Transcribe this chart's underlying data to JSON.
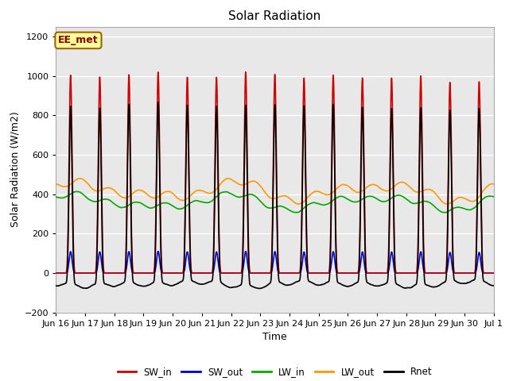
{
  "title": "Solar Radiation",
  "ylabel": "Solar Radiation (W/m2)",
  "xlabel": "Time",
  "ylim": [
    -200,
    1250
  ],
  "yticks": [
    -200,
    0,
    200,
    400,
    600,
    800,
    1000,
    1200
  ],
  "background_color": "#ffffff",
  "plot_bg_color": "#e8e8e8",
  "grid_color": "#ffffff",
  "annotation_text": "EE_met",
  "annotation_bg": "#ffff99",
  "annotation_border": "#996600",
  "annotation_text_color": "#880000",
  "series": {
    "SW_in": {
      "color": "#cc0000",
      "lw": 1.2,
      "zorder": 5
    },
    "SW_out": {
      "color": "#0000cc",
      "lw": 1.2,
      "zorder": 4
    },
    "LW_in": {
      "color": "#00aa00",
      "lw": 1.2,
      "zorder": 3
    },
    "LW_out": {
      "color": "#ff9900",
      "lw": 1.2,
      "zorder": 3
    },
    "Rnet": {
      "color": "#000000",
      "lw": 1.2,
      "zorder": 6
    }
  },
  "n_days": 15,
  "pts_per_day": 480,
  "xtick_labels": [
    "Jun 16",
    "Jun 17",
    "Jun 18",
    "Jun 19",
    "Jun 20",
    "Jun 21",
    "Jun 22",
    "Jun 23",
    "Jun 24",
    "Jun 25",
    "Jun 26",
    "Jun 27",
    "Jun 28",
    "Jun 29",
    "Jun 30",
    "Jul 1"
  ],
  "figsize": [
    6.4,
    4.8
  ],
  "dpi": 100
}
